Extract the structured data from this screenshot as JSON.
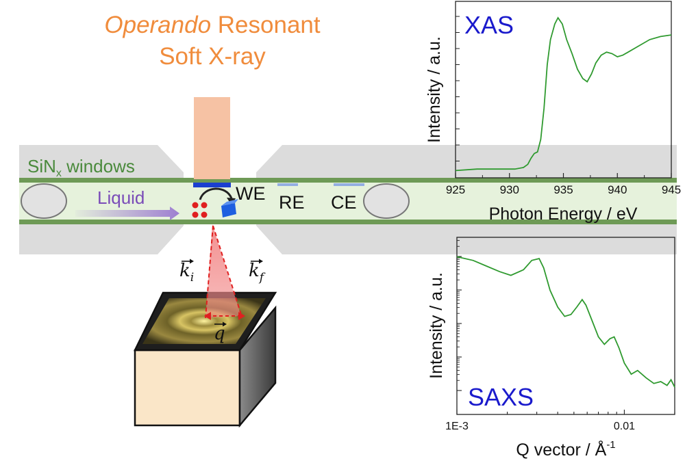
{
  "title": {
    "line1_italic": "Operando",
    "line1_rest": " Resonant",
    "line2": "Soft X-ray"
  },
  "cell": {
    "window_label": "SiN",
    "window_subscript": "x",
    "window_label_suffix": " windows",
    "liquid_label": "Liquid",
    "electrodes": [
      "WE",
      "RE",
      "CE"
    ]
  },
  "scattering": {
    "k_incident_base": "k",
    "k_incident_sub": "i",
    "k_final_base": "k",
    "k_final_sub": "f",
    "q_label": "q"
  },
  "colors": {
    "title": "#f08c3c",
    "beam": "#f6c2a4",
    "window_frame": "#dcdcdc",
    "membrane": "#6e9a56",
    "liquid": "#e6f2dc",
    "liquid_arrow": "#9a78d0",
    "working_electrode": "#1a3fd0",
    "other_electrodes": "#93aee2",
    "scatter_cone": "#f28a8a",
    "curve": "#2f9a2f",
    "panel_label": "#1a1acc"
  },
  "chart_data": [
    {
      "type": "line",
      "annotation": "XAS",
      "xlabel": "Photon Energy / eV",
      "ylabel": "Intensity / a.u.",
      "xlim": [
        925,
        945
      ],
      "xticks": [
        "925",
        "930",
        "935",
        "940",
        "945"
      ],
      "y_units": "arbitrary",
      "grid": false,
      "series": [
        {
          "x": [
            925.0,
            927.0,
            929.0,
            930.5,
            931.3,
            931.7,
            932.0,
            932.3,
            932.6,
            932.9,
            933.2,
            933.5,
            933.8,
            934.2,
            934.5,
            934.9,
            935.3,
            935.8,
            936.3,
            936.8,
            937.2,
            937.6,
            938.0,
            938.5,
            939.0,
            939.5,
            940.0,
            940.5,
            941.0,
            942.0,
            943.0,
            944.0,
            945.0
          ],
          "y": [
            0.02,
            0.03,
            0.03,
            0.03,
            0.04,
            0.06,
            0.1,
            0.13,
            0.14,
            0.22,
            0.42,
            0.7,
            0.86,
            0.96,
            1.0,
            0.96,
            0.86,
            0.77,
            0.67,
            0.61,
            0.59,
            0.64,
            0.71,
            0.76,
            0.78,
            0.77,
            0.75,
            0.76,
            0.78,
            0.82,
            0.86,
            0.88,
            0.89
          ]
        }
      ]
    },
    {
      "type": "line",
      "annotation": "SAXS",
      "xlabel": "Q vector / Å",
      "xlabel_superscript": "-1",
      "ylabel": "Intensity / a.u.",
      "x_scale": "log",
      "xlim": [
        0.001,
        0.02
      ],
      "xticks": [
        "1E-3",
        "0.01"
      ],
      "y_scale": "log",
      "y_units": "arbitrary",
      "grid": false,
      "series": [
        {
          "x": [
            0.001,
            0.00125,
            0.0015,
            0.0018,
            0.0021,
            0.0025,
            0.0028,
            0.0031,
            0.0033,
            0.0036,
            0.004,
            0.0044,
            0.0048,
            0.0052,
            0.0056,
            0.0059,
            0.0064,
            0.007,
            0.0076,
            0.0082,
            0.0087,
            0.0093,
            0.01,
            0.011,
            0.012,
            0.0135,
            0.015,
            0.0165,
            0.018,
            0.019,
            0.02
          ],
          "y": [
            3.4,
            3.3,
            3.15,
            3.0,
            2.9,
            3.05,
            3.3,
            3.35,
            3.1,
            2.5,
            2.05,
            1.8,
            1.85,
            2.05,
            2.25,
            2.1,
            1.7,
            1.25,
            1.05,
            1.2,
            1.25,
            0.95,
            0.55,
            0.25,
            0.35,
            0.15,
            0.0,
            0.05,
            -0.05,
            0.1,
            -0.1
          ]
        }
      ]
    }
  ]
}
